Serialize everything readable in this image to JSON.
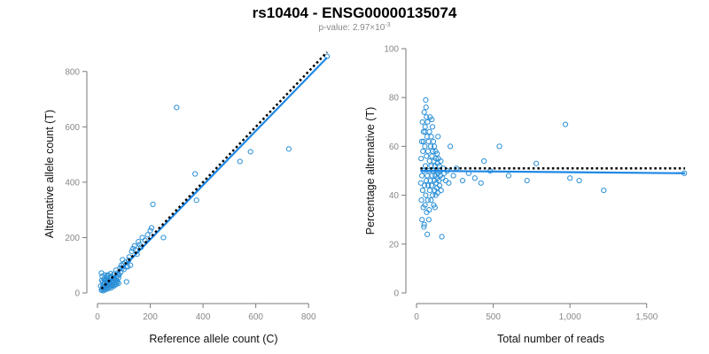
{
  "title": "rs10404 - ENSG00000135074",
  "subtitle": {
    "prefix": "p-value: 2.97×10",
    "exponent": "-3"
  },
  "colors": {
    "points": "#2a8fd6",
    "fit_line": "#1e88e5",
    "reference_line": "#000000",
    "ticks": "#888888"
  },
  "chart_data": [
    {
      "type": "scatter",
      "xlabel": "Reference allele count (C)",
      "ylabel": "Alternative allele count (T)",
      "xlim": [
        0,
        880
      ],
      "ylim": [
        0,
        860
      ],
      "xticks": [
        0,
        200,
        400,
        600,
        800
      ],
      "yticks": [
        0,
        200,
        400,
        600,
        800
      ],
      "xtick_labels": [
        "0",
        "200",
        "400",
        "600",
        "800"
      ],
      "ytick_labels": [
        "0",
        "200",
        "400",
        "600",
        "800"
      ],
      "grid": false,
      "points": [
        [
          15,
          10
        ],
        [
          18,
          14
        ],
        [
          20,
          22
        ],
        [
          22,
          8
        ],
        [
          25,
          30
        ],
        [
          28,
          18
        ],
        [
          30,
          12
        ],
        [
          32,
          26
        ],
        [
          35,
          20
        ],
        [
          38,
          34
        ],
        [
          40,
          15
        ],
        [
          42,
          28
        ],
        [
          45,
          40
        ],
        [
          48,
          22
        ],
        [
          50,
          35
        ],
        [
          52,
          18
        ],
        [
          55,
          44
        ],
        [
          58,
          30
        ],
        [
          60,
          52
        ],
        [
          62,
          25
        ],
        [
          65,
          38
        ],
        [
          68,
          48
        ],
        [
          70,
          30
        ],
        [
          72,
          58
        ],
        [
          75,
          42
        ],
        [
          78,
          62
        ],
        [
          80,
          35
        ],
        [
          20,
          40
        ],
        [
          25,
          50
        ],
        [
          30,
          45
        ],
        [
          18,
          60
        ],
        [
          22,
          30
        ],
        [
          35,
          55
        ],
        [
          40,
          65
        ],
        [
          45,
          28
        ],
        [
          50,
          70
        ],
        [
          15,
          72
        ],
        [
          28,
          65
        ],
        [
          33,
          38
        ],
        [
          38,
          48
        ],
        [
          42,
          20
        ],
        [
          47,
          52
        ],
        [
          52,
          60
        ],
        [
          57,
          40
        ],
        [
          62,
          68
        ],
        [
          66,
          50
        ],
        [
          70,
          82
        ],
        [
          75,
          72
        ],
        [
          80,
          55
        ],
        [
          85,
          90
        ],
        [
          88,
          75
        ],
        [
          90,
          100
        ],
        [
          95,
          120
        ],
        [
          100,
          85
        ],
        [
          105,
          110
        ],
        [
          110,
          40
        ],
        [
          115,
          95
        ],
        [
          120,
          130
        ],
        [
          125,
          100
        ],
        [
          130,
          150
        ],
        [
          140,
          170
        ],
        [
          150,
          140
        ],
        [
          160,
          175
        ],
        [
          170,
          200
        ],
        [
          180,
          190
        ],
        [
          190,
          210
        ],
        [
          200,
          225
        ],
        [
          205,
          235
        ],
        [
          210,
          320
        ],
        [
          250,
          200
        ],
        [
          300,
          670
        ],
        [
          370,
          430
        ],
        [
          375,
          335
        ],
        [
          540,
          475
        ],
        [
          580,
          510
        ],
        [
          725,
          520
        ],
        [
          870,
          855
        ],
        [
          12,
          25
        ],
        [
          16,
          45
        ],
        [
          24,
          15
        ],
        [
          26,
          38
        ],
        [
          34,
          24
        ],
        [
          36,
          62
        ],
        [
          44,
          46
        ],
        [
          46,
          32
        ],
        [
          54,
          58
        ],
        [
          56,
          26
        ],
        [
          64,
          44
        ],
        [
          66,
          32
        ],
        [
          72,
          46
        ],
        [
          74,
          36
        ],
        [
          82,
          66
        ],
        [
          92,
          88
        ],
        [
          98,
          105
        ],
        [
          108,
          95
        ],
        [
          118,
          118
        ],
        [
          135,
          160
        ],
        [
          145,
          155
        ],
        [
          155,
          185
        ],
        [
          165,
          165
        ]
      ],
      "fit_line": [
        [
          15,
          12
        ],
        [
          870,
          850
        ]
      ],
      "reference_line": [
        [
          15,
          15
        ],
        [
          870,
          870
        ]
      ]
    },
    {
      "type": "scatter",
      "xlabel": "Total number of reads",
      "ylabel": "Percentage alternative (T)",
      "xlim": [
        0,
        1750
      ],
      "ylim": [
        0,
        100
      ],
      "xticks": [
        0,
        500,
        1000,
        1500
      ],
      "yticks": [
        0,
        20,
        40,
        60,
        80,
        100
      ],
      "xtick_labels": [
        "0",
        "500",
        "1,000",
        "1,500"
      ],
      "ytick_labels": [
        "0",
        "20",
        "40",
        "60",
        "80",
        "100"
      ],
      "grid": false,
      "points": [
        [
          28,
          45
        ],
        [
          30,
          55
        ],
        [
          32,
          38
        ],
        [
          34,
          62
        ],
        [
          35,
          48
        ],
        [
          36,
          30
        ],
        [
          38,
          70
        ],
        [
          40,
          42
        ],
        [
          42,
          58
        ],
        [
          44,
          35
        ],
        [
          45,
          66
        ],
        [
          46,
          50
        ],
        [
          48,
          27
        ],
        [
          50,
          74
        ],
        [
          52,
          44
        ],
        [
          54,
          60
        ],
        [
          55,
          36
        ],
        [
          56,
          68
        ],
        [
          58,
          52
        ],
        [
          60,
          40
        ],
        [
          62,
          76
        ],
        [
          64,
          46
        ],
        [
          65,
          56
        ],
        [
          66,
          33
        ],
        [
          68,
          64
        ],
        [
          70,
          48
        ],
        [
          72,
          70
        ],
        [
          74,
          38
        ],
        [
          75,
          58
        ],
        [
          76,
          44
        ],
        [
          78,
          62
        ],
        [
          80,
          50
        ],
        [
          82,
          34
        ],
        [
          84,
          66
        ],
        [
          85,
          54
        ],
        [
          86,
          42
        ],
        [
          88,
          72
        ],
        [
          90,
          46
        ],
        [
          92,
          60
        ],
        [
          94,
          38
        ],
        [
          95,
          52
        ],
        [
          96,
          64
        ],
        [
          98,
          44
        ],
        [
          100,
          56
        ],
        [
          102,
          48
        ],
        [
          104,
          68
        ],
        [
          105,
          40
        ],
        [
          106,
          58
        ],
        [
          108,
          50
        ],
        [
          110,
          62
        ],
        [
          112,
          36
        ],
        [
          114,
          54
        ],
        [
          115,
          46
        ],
        [
          116,
          60
        ],
        [
          118,
          42
        ],
        [
          120,
          52
        ],
        [
          122,
          48
        ],
        [
          124,
          58
        ],
        [
          125,
          40
        ],
        [
          126,
          55
        ],
        [
          128,
          45
        ],
        [
          130,
          50
        ],
        [
          132,
          43
        ],
        [
          134,
          57
        ],
        [
          135,
          47
        ],
        [
          136,
          53
        ],
        [
          138,
          41
        ],
        [
          140,
          49
        ],
        [
          142,
          55
        ],
        [
          145,
          46
        ],
        [
          148,
          52
        ],
        [
          150,
          44
        ],
        [
          152,
          50
        ],
        [
          155,
          48
        ],
        [
          158,
          54
        ],
        [
          160,
          42
        ],
        [
          165,
          23
        ],
        [
          170,
          47
        ],
        [
          175,
          51
        ],
        [
          180,
          49
        ],
        [
          190,
          46
        ],
        [
          200,
          50
        ],
        [
          210,
          45
        ],
        [
          220,
          60
        ],
        [
          240,
          48
        ],
        [
          260,
          51
        ],
        [
          300,
          46
        ],
        [
          340,
          49
        ],
        [
          380,
          47
        ],
        [
          420,
          45
        ],
        [
          440,
          54
        ],
        [
          480,
          50
        ],
        [
          540,
          60
        ],
        [
          600,
          48
        ],
        [
          720,
          46
        ],
        [
          780,
          53
        ],
        [
          970,
          69
        ],
        [
          1000,
          47
        ],
        [
          1060,
          46
        ],
        [
          1220,
          42
        ],
        [
          1745,
          49
        ],
        [
          60,
          79
        ],
        [
          70,
          24
        ],
        [
          80,
          30
        ],
        [
          100,
          71
        ],
        [
          120,
          35
        ],
        [
          140,
          64
        ],
        [
          50,
          28
        ],
        [
          45,
          62
        ],
        [
          55,
          66
        ],
        [
          65,
          72
        ]
      ],
      "fit_line": [
        [
          25,
          50
        ],
        [
          1750,
          49
        ]
      ],
      "reference_line": [
        [
          25,
          51
        ],
        [
          1750,
          51
        ]
      ]
    }
  ]
}
